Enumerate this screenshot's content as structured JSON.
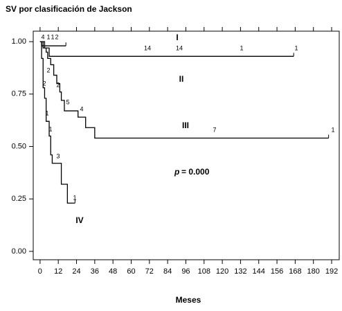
{
  "chart_data": {
    "type": "step",
    "title": "SV por clasificación de Jackson",
    "xlabel": "Meses",
    "xlim": [
      -4.5,
      197
    ],
    "ylim": [
      -0.04,
      1.05
    ],
    "xticks": [
      0,
      12,
      24,
      36,
      48,
      60,
      72,
      84,
      96,
      108,
      120,
      132,
      144,
      156,
      168,
      180,
      192
    ],
    "yticks": [
      {
        "value": 0,
        "label": "0.00"
      },
      {
        "value": 0.25,
        "label": "0.25"
      },
      {
        "value": 0.5,
        "label": "0.50"
      },
      {
        "value": 0.75,
        "label": "0.75"
      },
      {
        "value": 1,
        "label": "1.00"
      }
    ],
    "annotation_symbol": "p",
    "annotation": "= 0.000",
    "series": [
      {
        "name": "I",
        "color": "#000000",
        "x": [
          0,
          1,
          17
        ],
        "values": [
          1,
          0.98,
          0.98
        ],
        "at_risk": [
          4,
          1,
          1,
          2
        ]
      },
      {
        "name": "II",
        "color": "#000000",
        "x": [
          0,
          3,
          6,
          167
        ],
        "values": [
          1,
          0.97,
          0.93,
          0.93
        ],
        "at_risk": [
          14,
          14,
          1,
          1
        ]
      },
      {
        "name": "III",
        "color": "#000000",
        "x": [
          0,
          2,
          4,
          5,
          7,
          9,
          11,
          13,
          14,
          16,
          25,
          30,
          36,
          190
        ],
        "values": [
          1,
          0.97,
          0.95,
          0.92,
          0.89,
          0.84,
          0.8,
          0.76,
          0.72,
          0.67,
          0.64,
          0.59,
          0.54,
          0.54
        ],
        "at_risk": [
          2,
          2,
          5,
          4,
          7,
          1
        ]
      },
      {
        "name": "IV",
        "color": "#000000",
        "x": [
          0,
          1,
          2,
          3,
          4,
          6,
          7,
          8,
          14,
          18,
          23
        ],
        "values": [
          1,
          0.92,
          0.78,
          0.73,
          0.62,
          0.55,
          0.46,
          0.42,
          0.32,
          0.23,
          0.23
        ],
        "at_risk": [
          2,
          1,
          1,
          3,
          1
        ]
      }
    ]
  }
}
